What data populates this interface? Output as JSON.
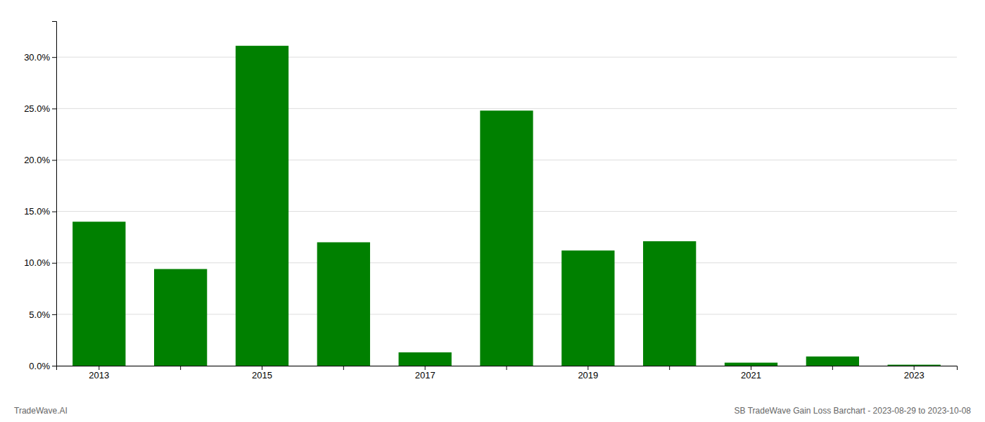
{
  "chart_data": {
    "type": "bar",
    "categories": [
      "2013",
      null,
      "2015",
      null,
      "2017",
      null,
      "2019",
      null,
      "2021",
      null,
      "2023"
    ],
    "values": [
      0.14,
      0.094,
      0.311,
      0.12,
      0.013,
      0.248,
      0.112,
      0.121,
      0.003,
      0.009,
      0.001
    ],
    "color": "#008000",
    "ylim": [
      0,
      0.335
    ],
    "yticks": [
      {
        "value": 0.0,
        "label": "0.0%"
      },
      {
        "value": 0.05,
        "label": "5.0%"
      },
      {
        "value": 0.1,
        "label": "10.0%"
      },
      {
        "value": 0.15,
        "label": "15.0%"
      },
      {
        "value": 0.2,
        "label": "20.0%"
      },
      {
        "value": 0.25,
        "label": "25.0%"
      },
      {
        "value": 0.3,
        "label": "30.0%"
      }
    ],
    "grid": true,
    "annotations": [
      "TradeWave.AI",
      "SB TradeWave Gain Loss Barchart - 2023-08-29 to 2023-10-08"
    ]
  }
}
